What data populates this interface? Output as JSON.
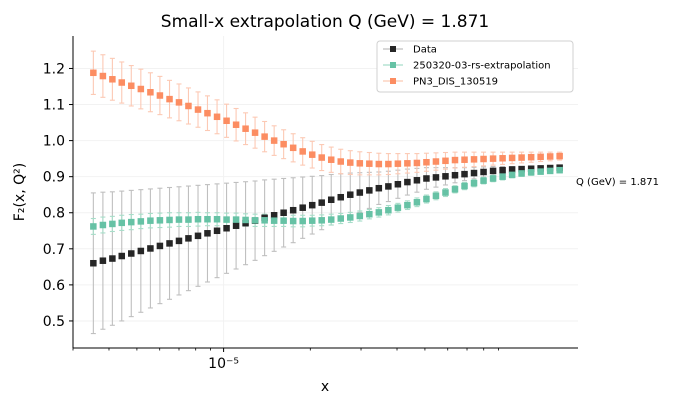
{
  "chart_data": {
    "type": "scatter",
    "title": "Small-x extrapolation Q (GeV) = 1.871",
    "xlabel": "x",
    "ylabel": "F₂(x, Q²)",
    "x_scale": "log",
    "xlim": [
      3e-06,
      0.00017
    ],
    "ylim": [
      0.425,
      1.29
    ],
    "x_ticks": [
      {
        "value": 1e-05,
        "label": "10⁻⁵"
      }
    ],
    "y_ticks": [
      0.5,
      0.6,
      0.7,
      0.8,
      0.9,
      1.0,
      1.1,
      1.2
    ],
    "grid": true,
    "legend_position": "top-right",
    "annotation": "Q (GeV) = 1.871",
    "x": [
      3.53e-06,
      3.81e-06,
      4.11e-06,
      4.43e-06,
      4.78e-06,
      5.16e-06,
      5.57e-06,
      6.01e-06,
      6.49e-06,
      7e-06,
      7.55e-06,
      8.15e-06,
      8.79e-06,
      9.49e-06,
      1.024e-05,
      1.105e-05,
      1.192e-05,
      1.286e-05,
      1.388e-05,
      1.498e-05,
      1.616e-05,
      1.744e-05,
      1.882e-05,
      2.031e-05,
      2.191e-05,
      2.364e-05,
      2.551e-05,
      2.753e-05,
      2.971e-05,
      3.206e-05,
      3.459e-05,
      3.733e-05,
      4.028e-05,
      4.346e-05,
      4.69e-05,
      5.061e-05,
      5.461e-05,
      5.893e-05,
      6.359e-05,
      6.862e-05,
      7.404e-05,
      7.99e-05,
      8.622e-05,
      9.303e-05,
      0.0001004,
      0.0001083,
      0.0001169,
      0.0001261,
      0.0001361,
      0.0001468
    ],
    "series": [
      {
        "name": "Data",
        "color": "#262626",
        "err_color": "#bfbfbf",
        "values": [
          0.66,
          0.667,
          0.673,
          0.68,
          0.687,
          0.694,
          0.701,
          0.708,
          0.715,
          0.722,
          0.729,
          0.736,
          0.743,
          0.75,
          0.757,
          0.764,
          0.771,
          0.778,
          0.786,
          0.793,
          0.8,
          0.807,
          0.814,
          0.821,
          0.828,
          0.836,
          0.843,
          0.85,
          0.856,
          0.862,
          0.868,
          0.873,
          0.879,
          0.885,
          0.89,
          0.895,
          0.898,
          0.901,
          0.904,
          0.907,
          0.91,
          0.913,
          0.916,
          0.918,
          0.92,
          0.921,
          0.922,
          0.923,
          0.924,
          0.925
        ],
        "errors": [
          0.195,
          0.19,
          0.185,
          0.18,
          0.175,
          0.17,
          0.165,
          0.16,
          0.155,
          0.15,
          0.145,
          0.14,
          0.135,
          0.13,
          0.125,
          0.12,
          0.115,
          0.11,
          0.105,
          0.1,
          0.095,
          0.09,
          0.085,
          0.08,
          0.075,
          0.07,
          0.065,
          0.06,
          0.055,
          0.05,
          0.045,
          0.042,
          0.039,
          0.036,
          0.033,
          0.03,
          0.027,
          0.024,
          0.021,
          0.018,
          0.016,
          0.014,
          0.012,
          0.01,
          0.008,
          0.007,
          0.006,
          0.005,
          0.005,
          0.005
        ]
      },
      {
        "name": "250320-03-rs-extrapolation",
        "color": "#66c2a5",
        "err_color": "#a8ddc9",
        "values": [
          0.762,
          0.766,
          0.769,
          0.772,
          0.774,
          0.776,
          0.778,
          0.779,
          0.78,
          0.781,
          0.781,
          0.782,
          0.782,
          0.782,
          0.781,
          0.781,
          0.78,
          0.779,
          0.779,
          0.778,
          0.778,
          0.777,
          0.777,
          0.778,
          0.779,
          0.781,
          0.784,
          0.787,
          0.791,
          0.796,
          0.801,
          0.807,
          0.814,
          0.821,
          0.829,
          0.838,
          0.847,
          0.856,
          0.865,
          0.874,
          0.882,
          0.889,
          0.895,
          0.9,
          0.905,
          0.909,
          0.912,
          0.914,
          0.916,
          0.918
        ],
        "errors": [
          0.022,
          0.022,
          0.021,
          0.021,
          0.021,
          0.02,
          0.02,
          0.02,
          0.02,
          0.019,
          0.019,
          0.019,
          0.018,
          0.018,
          0.018,
          0.018,
          0.017,
          0.017,
          0.017,
          0.016,
          0.016,
          0.016,
          0.016,
          0.015,
          0.015,
          0.015,
          0.014,
          0.014,
          0.014,
          0.013,
          0.013,
          0.013,
          0.012,
          0.012,
          0.012,
          0.011,
          0.011,
          0.011,
          0.01,
          0.01,
          0.01,
          0.009,
          0.009,
          0.009,
          0.008,
          0.008,
          0.008,
          0.007,
          0.007,
          0.007
        ]
      },
      {
        "name": "PN3_DIS_130519",
        "color": "#fc8d62",
        "err_color": "#fcc9b4",
        "values": [
          1.188,
          1.179,
          1.17,
          1.161,
          1.152,
          1.143,
          1.134,
          1.125,
          1.115,
          1.106,
          1.096,
          1.086,
          1.076,
          1.066,
          1.055,
          1.044,
          1.033,
          1.022,
          1.011,
          1.0,
          0.99,
          0.98,
          0.97,
          0.961,
          0.953,
          0.947,
          0.942,
          0.939,
          0.937,
          0.936,
          0.935,
          0.935,
          0.936,
          0.937,
          0.938,
          0.94,
          0.942,
          0.944,
          0.946,
          0.947,
          0.948,
          0.949,
          0.95,
          0.951,
          0.952,
          0.953,
          0.954,
          0.955,
          0.956,
          0.957
        ],
        "errors": [
          0.06,
          0.059,
          0.058,
          0.057,
          0.056,
          0.055,
          0.054,
          0.053,
          0.052,
          0.051,
          0.05,
          0.049,
          0.048,
          0.047,
          0.046,
          0.045,
          0.044,
          0.043,
          0.042,
          0.041,
          0.04,
          0.039,
          0.038,
          0.037,
          0.036,
          0.035,
          0.034,
          0.033,
          0.032,
          0.031,
          0.03,
          0.029,
          0.028,
          0.027,
          0.026,
          0.025,
          0.024,
          0.023,
          0.022,
          0.021,
          0.02,
          0.019,
          0.018,
          0.017,
          0.016,
          0.015,
          0.014,
          0.013,
          0.012,
          0.011
        ]
      }
    ]
  }
}
